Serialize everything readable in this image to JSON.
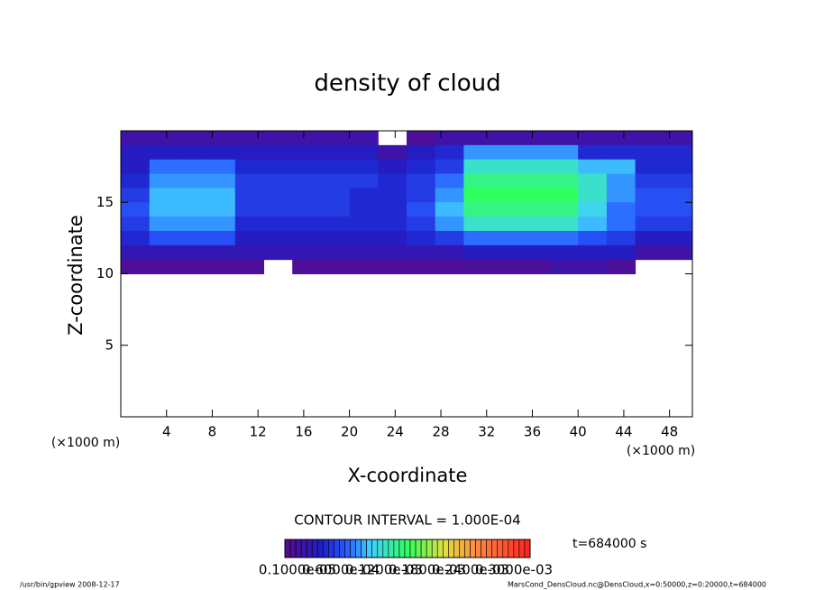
{
  "chart_data": {
    "type": "heatmap",
    "title": "density of cloud",
    "xlabel": "X-coordinate",
    "ylabel": "Z-coordinate",
    "x_unit": "(×1000 m)",
    "y_unit": "(×1000 m)",
    "contour_note": "CONTOUR INTERVAL = 1.000E-04",
    "time_label": "t=684000 s",
    "footer_left": "/usr/bin/gpview  2008-12-17",
    "footer_right": "MarsCond_DensCloud.nc@DensCloud,x=0:50000,z=0:20000,t=684000",
    "xlim": [
      0,
      50
    ],
    "ylim": [
      0,
      20
    ],
    "xticks": [
      4,
      8,
      12,
      16,
      20,
      24,
      28,
      32,
      36,
      40,
      44,
      48
    ],
    "yticks": [
      5,
      10,
      15
    ],
    "x": [
      1.25,
      3.75,
      6.25,
      8.75,
      11.25,
      13.75,
      16.25,
      18.75,
      21.25,
      23.75,
      26.25,
      28.75,
      31.25,
      33.75,
      36.25,
      38.75,
      41.25,
      43.75,
      46.25,
      48.75
    ],
    "z": [
      19.5,
      18.5,
      17.5,
      16.5,
      15.5,
      14.5,
      13.5,
      12.5,
      11.5,
      10.5
    ],
    "values": [
      [
        2e-05,
        2e-05,
        2e-05,
        2e-05,
        2e-05,
        2e-05,
        2e-05,
        2e-05,
        2e-05,
        null,
        1e-05,
        2e-05,
        2e-05,
        2e-05,
        2e-05,
        2e-05,
        2e-05,
        2e-05,
        2e-05,
        2e-05
      ],
      [
        4e-05,
        4e-05,
        4e-05,
        4e-05,
        4e-05,
        4e-05,
        4e-05,
        4e-05,
        4e-05,
        2e-05,
        4e-05,
        5e-05,
        9e-05,
        9e-05,
        9e-05,
        9e-05,
        5e-05,
        5e-05,
        5e-05,
        5e-05
      ],
      [
        4e-05,
        8e-05,
        8e-05,
        8e-05,
        5e-05,
        5e-05,
        5e-05,
        5e-05,
        5e-05,
        4e-05,
        5e-05,
        6e-05,
        0.00012,
        0.00012,
        0.00012,
        0.00012,
        0.0001,
        0.0001,
        5e-05,
        5e-05
      ],
      [
        5e-05,
        9e-05,
        9e-05,
        9e-05,
        6e-05,
        6e-05,
        6e-05,
        6e-05,
        6e-05,
        5e-05,
        6e-05,
        8e-05,
        0.00014,
        0.00014,
        0.00014,
        0.00014,
        0.00012,
        9e-05,
        6e-05,
        6e-05
      ],
      [
        6e-05,
        0.0001,
        0.0001,
        0.0001,
        6e-05,
        6e-05,
        6e-05,
        6e-05,
        5e-05,
        5e-05,
        6e-05,
        9e-05,
        0.00015,
        0.00015,
        0.00015,
        0.00015,
        0.00012,
        9e-05,
        7e-05,
        7e-05
      ],
      [
        7e-05,
        0.0001,
        0.0001,
        0.0001,
        6e-05,
        6e-05,
        6e-05,
        6e-05,
        5e-05,
        5e-05,
        7e-05,
        0.0001,
        0.00014,
        0.00014,
        0.00014,
        0.00014,
        0.00011,
        8e-05,
        7e-05,
        7e-05
      ],
      [
        6e-05,
        9e-05,
        9e-05,
        9e-05,
        5e-05,
        5e-05,
        5e-05,
        5e-05,
        5e-05,
        5e-05,
        6e-05,
        9e-05,
        0.00012,
        0.00012,
        0.00012,
        0.00012,
        0.0001,
        8e-05,
        6e-05,
        6e-05
      ],
      [
        5e-05,
        7e-05,
        7e-05,
        7e-05,
        4e-05,
        4e-05,
        4e-05,
        4e-05,
        4e-05,
        4e-05,
        5e-05,
        6e-05,
        8e-05,
        8e-05,
        8e-05,
        8e-05,
        7e-05,
        6e-05,
        4e-05,
        4e-05
      ],
      [
        3e-05,
        3e-05,
        3e-05,
        3e-05,
        3e-05,
        3e-05,
        3e-05,
        3e-05,
        3e-05,
        3e-05,
        3e-05,
        3e-05,
        4e-05,
        4e-05,
        4e-05,
        4e-05,
        4e-05,
        4e-05,
        2e-05,
        2e-05
      ],
      [
        1e-05,
        1e-05,
        1e-05,
        1e-05,
        1e-05,
        null,
        1e-05,
        1e-05,
        1e-05,
        1e-05,
        1e-05,
        1e-05,
        1e-05,
        1e-05,
        1e-05,
        2e-05,
        2e-05,
        1e-05,
        null,
        null
      ]
    ],
    "zlim": [
      0,
      0.0003
    ],
    "zticks": [
      {
        "value": 1e-06,
        "label": "0.1000e-05"
      },
      {
        "value": 6e-05,
        "label": "0.6000e-04"
      },
      {
        "value": 0.00012,
        "label": "0.1200e-03"
      },
      {
        "value": 0.00018,
        "label": "0.1800e-03"
      },
      {
        "value": 0.00024,
        "label": "0.2400e-03"
      },
      {
        "value": 0.0003,
        "label": "0.3000e-03"
      }
    ]
  }
}
